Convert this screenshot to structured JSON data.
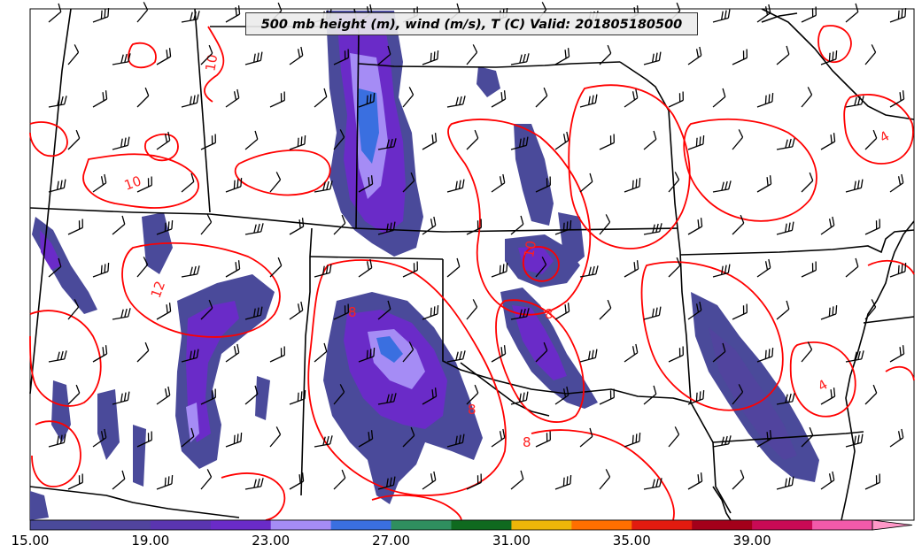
{
  "title": "500 mb height (m), wind (m/s), T (C) Valid: 201805180500",
  "colorbar": {
    "colors": [
      "#4a4a9a",
      "#51449e",
      "#5a35b0",
      "#6a2bc8",
      "#a58cf5",
      "#3a6fe0",
      "#2f8f5f",
      "#0f6a1f",
      "#eeb609",
      "#ff6f00",
      "#e21b0f",
      "#a3001a",
      "#c90a55",
      "#f25aaa",
      "#ff98c8"
    ],
    "labels": [
      "15.00",
      "19.00",
      "23.00",
      "27.00",
      "31.00",
      "35.00",
      "39.00"
    ],
    "min": 15,
    "max": 43
  },
  "contour_labels": [
    "10",
    "10",
    "12",
    "10",
    "8",
    "8",
    "8",
    "8",
    "4",
    "4"
  ],
  "legend_colors": {
    "temperature_contour": "#ff0000",
    "boundaries": "#000000",
    "wind_barbs": "#000000"
  }
}
